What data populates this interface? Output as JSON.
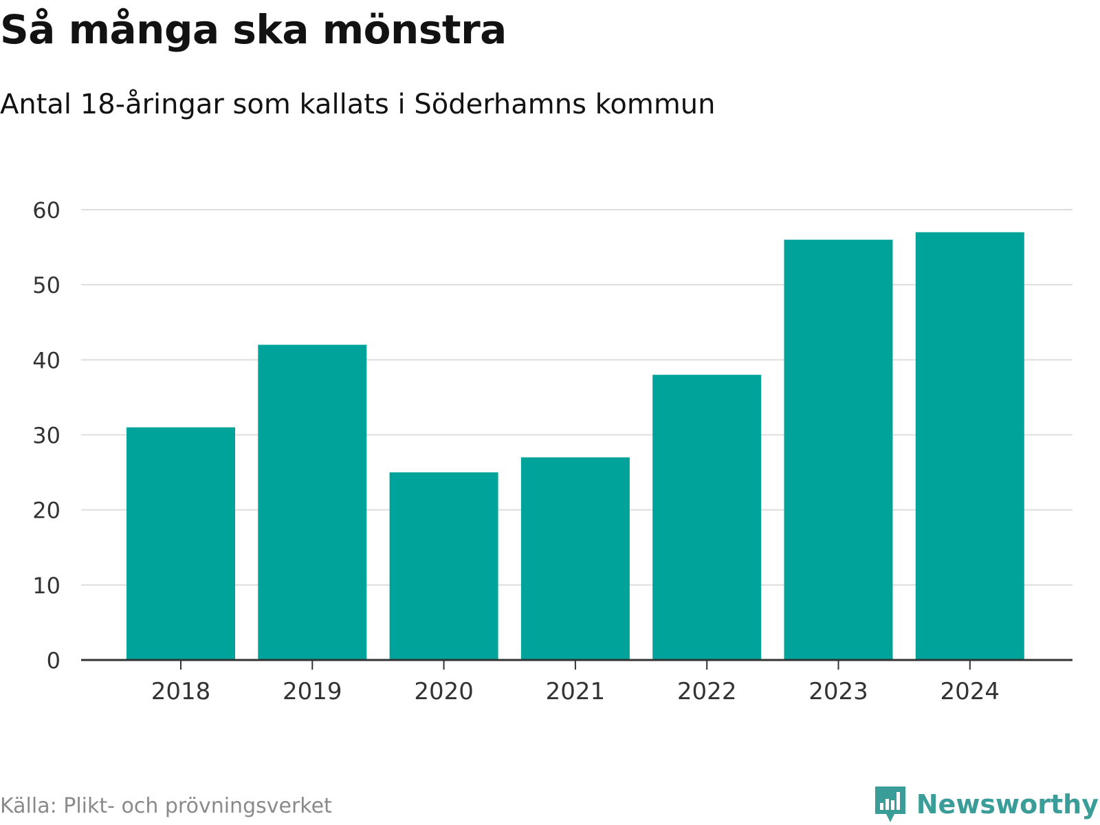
{
  "header": {
    "title": "Så många ska mönstra",
    "subtitle": "Antal 18-åringar som kallats i Söderhamns kommun"
  },
  "footer": {
    "source": "Källa: Plikt- och prövningsverket",
    "brand": "Newsworthy",
    "brand_icon": "newsworthy-logo-icon"
  },
  "colors": {
    "bar": "#00a39a",
    "grid": "#dddddd",
    "axis": "#333333",
    "text": "#333333",
    "brand": "#3a9d97"
  },
  "chart_data": {
    "type": "bar",
    "title": "Så många ska mönstra",
    "subtitle": "Antal 18-åringar som kallats i Söderhamns kommun",
    "categories": [
      "2018",
      "2019",
      "2020",
      "2021",
      "2022",
      "2023",
      "2024"
    ],
    "values": [
      31,
      42,
      25,
      27,
      38,
      56,
      57
    ],
    "xlabel": "",
    "ylabel": "",
    "ylim": [
      0,
      60
    ],
    "yticks": [
      0,
      10,
      20,
      30,
      40,
      50,
      60
    ],
    "grid": true,
    "legend": "none"
  }
}
